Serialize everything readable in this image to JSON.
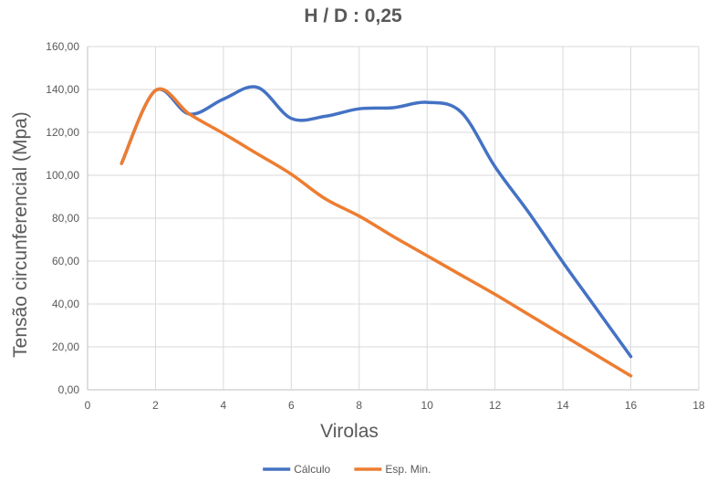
{
  "chart_data": {
    "type": "line",
    "title": "H / D : 0,25",
    "xlabel": "Virolas",
    "ylabel": "Tensão circunferencial (Mpa)",
    "xlim": [
      0,
      18
    ],
    "ylim": [
      0,
      160
    ],
    "x_ticks": [
      "0",
      "2",
      "4",
      "6",
      "8",
      "10",
      "12",
      "14",
      "16",
      "18"
    ],
    "y_ticks": [
      "0,00",
      "20,00",
      "40,00",
      "60,00",
      "80,00",
      "100,00",
      "120,00",
      "140,00",
      "160,00"
    ],
    "grid": true,
    "legend_position": "bottom",
    "series": [
      {
        "name": "Cálculo",
        "color": "#4472C4",
        "x": [
          1,
          2,
          3,
          4,
          5,
          6,
          7,
          8,
          9,
          10,
          11,
          12,
          13,
          14,
          15,
          16
        ],
        "values": [
          105.5,
          139.5,
          128.5,
          135.5,
          141,
          126.5,
          127.5,
          131,
          131.5,
          134,
          129.5,
          104,
          82.5,
          59.5,
          37.5,
          15.5
        ]
      },
      {
        "name": "Esp. Min.",
        "color": "#ED7D31",
        "x": [
          1,
          2,
          3,
          4,
          5,
          6,
          7,
          8,
          9,
          10,
          11,
          12,
          13,
          14,
          15,
          16
        ],
        "values": [
          105.5,
          139.5,
          128.5,
          119.5,
          110,
          100.5,
          89,
          81,
          71.5,
          62.5,
          53.5,
          44.5,
          35,
          25.5,
          16,
          6.5
        ]
      }
    ]
  }
}
